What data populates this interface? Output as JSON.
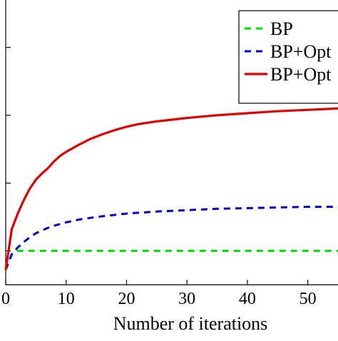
{
  "chart_data": {
    "type": "line",
    "xlabel": "Number of iterations",
    "ylabel": "",
    "title": "",
    "xlim": [
      0,
      55
    ],
    "ylim": [
      0,
      4.2
    ],
    "grid": false,
    "legend_position": "top-right",
    "x_tick_labels": [
      "0",
      "10",
      "20",
      "30",
      "40",
      "50"
    ],
    "x_tick_values": [
      0,
      10,
      20,
      30,
      40,
      50
    ],
    "y_tick_values": [
      0.5,
      1.5,
      2.5,
      3.5
    ],
    "series": [
      {
        "name": "BP",
        "color": "#00e000",
        "style": "dashed",
        "x": [
          0,
          1,
          2,
          3,
          5,
          10,
          20,
          30,
          40,
          50,
          55
        ],
        "y": [
          0.22,
          0.45,
          0.5,
          0.5,
          0.5,
          0.5,
          0.5,
          0.5,
          0.5,
          0.5,
          0.5
        ]
      },
      {
        "name": "BP+Opt",
        "color": "#0000c8",
        "style": "dashed",
        "x": [
          0,
          1,
          2,
          3,
          4,
          5,
          6,
          7,
          8,
          10,
          12,
          15,
          20,
          25,
          30,
          35,
          40,
          45,
          50,
          55
        ],
        "y": [
          0.22,
          0.45,
          0.55,
          0.63,
          0.7,
          0.76,
          0.8,
          0.84,
          0.87,
          0.92,
          0.96,
          1.0,
          1.05,
          1.08,
          1.1,
          1.12,
          1.13,
          1.14,
          1.15,
          1.15
        ]
      },
      {
        "name": "BP+Opt",
        "color": "#e00000",
        "style": "solid",
        "x": [
          0,
          1,
          2,
          3,
          4,
          5,
          6,
          7,
          8,
          9,
          10,
          12,
          14,
          16,
          18,
          20,
          22,
          25,
          28,
          30,
          35,
          40,
          45,
          50,
          55
        ],
        "y": [
          0.22,
          0.82,
          1.05,
          1.25,
          1.42,
          1.55,
          1.64,
          1.72,
          1.82,
          1.9,
          1.96,
          2.06,
          2.15,
          2.22,
          2.28,
          2.33,
          2.37,
          2.41,
          2.44,
          2.46,
          2.5,
          2.53,
          2.56,
          2.58,
          2.6
        ]
      }
    ]
  }
}
